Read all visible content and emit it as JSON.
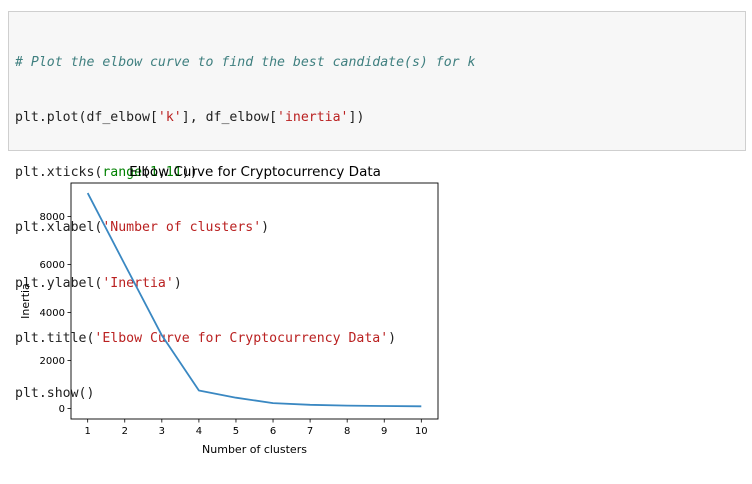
{
  "code_cell": {
    "comment": "# Plot the elbow curve to find the best candidate(s) for k",
    "line2": {
      "a": "plt.plot(df_elbow[",
      "s1": "'k'",
      "b": "], df_elbow[",
      "s2": "'inertia'",
      "c": "])"
    },
    "line3": {
      "a": "plt.xticks(",
      "fn": "range",
      "b": "(",
      "n1": "1",
      "c": ",",
      "n2": "11",
      "d": "))"
    },
    "line4": {
      "a": "plt.xlabel(",
      "s": "'Number of clusters'",
      "b": ")"
    },
    "line5": {
      "a": "plt.ylabel(",
      "s": "'Inertia'",
      "b": ")"
    },
    "line6": {
      "a": "plt.title(",
      "s": "'Elbow Curve for Cryptocurrency Data'",
      "b": ")"
    },
    "line7": {
      "a": "plt.show()"
    }
  },
  "chart_data": {
    "type": "line",
    "title": "Elbow Curve for Cryptocurrency Data",
    "xlabel": "Number of clusters",
    "ylabel": "Inertia",
    "x": [
      1,
      2,
      3,
      4,
      5,
      6,
      7,
      8,
      9,
      10
    ],
    "xticks": [
      "1",
      "2",
      "3",
      "4",
      "5",
      "6",
      "7",
      "8",
      "9",
      "10"
    ],
    "yticks": [
      {
        "value": 0,
        "label": "0"
      },
      {
        "value": 2000,
        "label": "2000"
      },
      {
        "value": 4000,
        "label": "4000"
      },
      {
        "value": 6000,
        "label": "6000"
      },
      {
        "value": 8000,
        "label": "8000"
      }
    ],
    "series": [
      {
        "values": [
          8980,
          6000,
          3050,
          750,
          450,
          225,
          150,
          120,
          100,
          90
        ],
        "color": "#3a88c2"
      }
    ],
    "xlim": [
      0.55,
      10.45
    ],
    "ylim": [
      -440,
      9400
    ],
    "grid": false
  }
}
